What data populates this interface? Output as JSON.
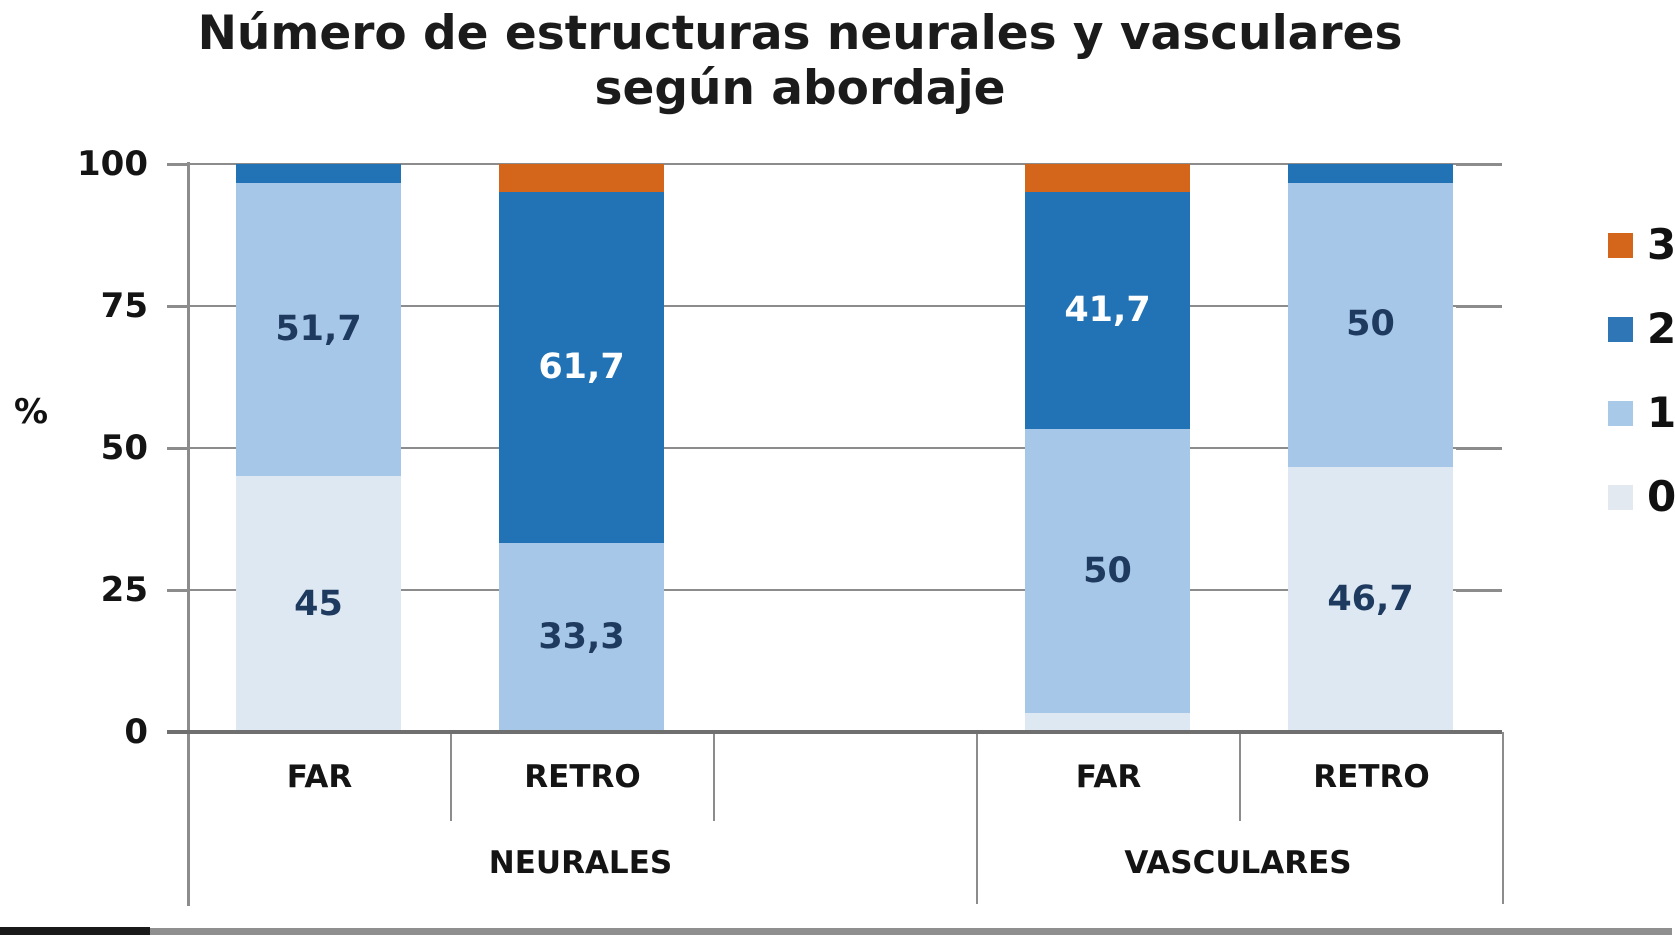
{
  "chart_data": {
    "type": "bar",
    "stacked": true,
    "title": "Número de estructuras neurales y vasculares según abordaje",
    "title_lines": [
      "Número de estructuras neurales y vasculares",
      "según abordaje"
    ],
    "ylabel": "%",
    "ylim": [
      0,
      100
    ],
    "grid": true,
    "legend_position": "right",
    "y_axis": {
      "ticks": [
        0,
        25,
        50,
        75,
        100
      ],
      "tick_labels": [
        "0",
        "25",
        "50",
        "75",
        "100"
      ]
    },
    "x_axis": {
      "categories": [
        "FAR",
        "RETRO",
        "",
        "FAR",
        "RETRO"
      ],
      "groups": [
        {
          "label": "NEURALES",
          "from_slot": 0,
          "to_slot": 3
        },
        {
          "label": "VASCULARES",
          "from_slot": 3,
          "to_slot": 5
        }
      ]
    },
    "series": [
      {
        "name": "0",
        "color": "#dde8f3",
        "values": [
          45,
          0,
          3.3,
          46.7
        ]
      },
      {
        "name": "1",
        "color": "#a6c7e8",
        "values": [
          51.7,
          33.3,
          50,
          50
        ]
      },
      {
        "name": "2",
        "color": "#2173b6",
        "values": [
          3.3,
          61.7,
          41.7,
          3.3
        ]
      },
      {
        "name": "3",
        "color": "#d4661b",
        "values": [
          0,
          5,
          5,
          0
        ]
      }
    ],
    "bars": [
      {
        "slot": 0,
        "group": "NEURALES",
        "category": "FAR",
        "segments": [
          {
            "series": "0",
            "value": 45,
            "label": "45",
            "label_style": "dark"
          },
          {
            "series": "1",
            "value": 51.7,
            "label": "51,7",
            "label_style": "dark"
          },
          {
            "series": "2",
            "value": 3.3
          }
        ]
      },
      {
        "slot": 1,
        "group": "NEURALES",
        "category": "RETRO",
        "segments": [
          {
            "series": "1",
            "value": 33.3,
            "label": "33,3",
            "label_style": "dark"
          },
          {
            "series": "2",
            "value": 61.7,
            "label": "61,7",
            "label_style": "light"
          },
          {
            "series": "3",
            "value": 5
          }
        ]
      },
      {
        "slot": 3,
        "group": "VASCULARES",
        "category": "FAR",
        "segments": [
          {
            "series": "0",
            "value": 3.3
          },
          {
            "series": "1",
            "value": 50,
            "label": "50",
            "label_style": "dark"
          },
          {
            "series": "2",
            "value": 41.7,
            "label": "41,7",
            "label_style": "light"
          },
          {
            "series": "3",
            "value": 5
          }
        ]
      },
      {
        "slot": 4,
        "group": "VASCULARES",
        "category": "RETRO",
        "segments": [
          {
            "series": "0",
            "value": 46.7,
            "label": "46,7",
            "label_style": "dark"
          },
          {
            "series": "1",
            "value": 50,
            "label": "50",
            "label_style": "dark"
          },
          {
            "series": "2",
            "value": 3.3
          }
        ]
      }
    ],
    "legend": {
      "entries": [
        {
          "label": "3",
          "color": "#d4661b"
        },
        {
          "label": "2",
          "color": "#2e76b5"
        },
        {
          "label": "1",
          "color": "#a9c9e9"
        },
        {
          "label": "0",
          "color": "#e3e9f0"
        }
      ]
    },
    "style": {
      "value_label_dark": "#1e3a5f",
      "value_label_light": "#ffffff",
      "gridline_color": "#8c8c8c",
      "axis_color": "#6f6f6f",
      "footer_black": "#1a1a1a",
      "footer_gray": "#8f8f8f"
    }
  }
}
